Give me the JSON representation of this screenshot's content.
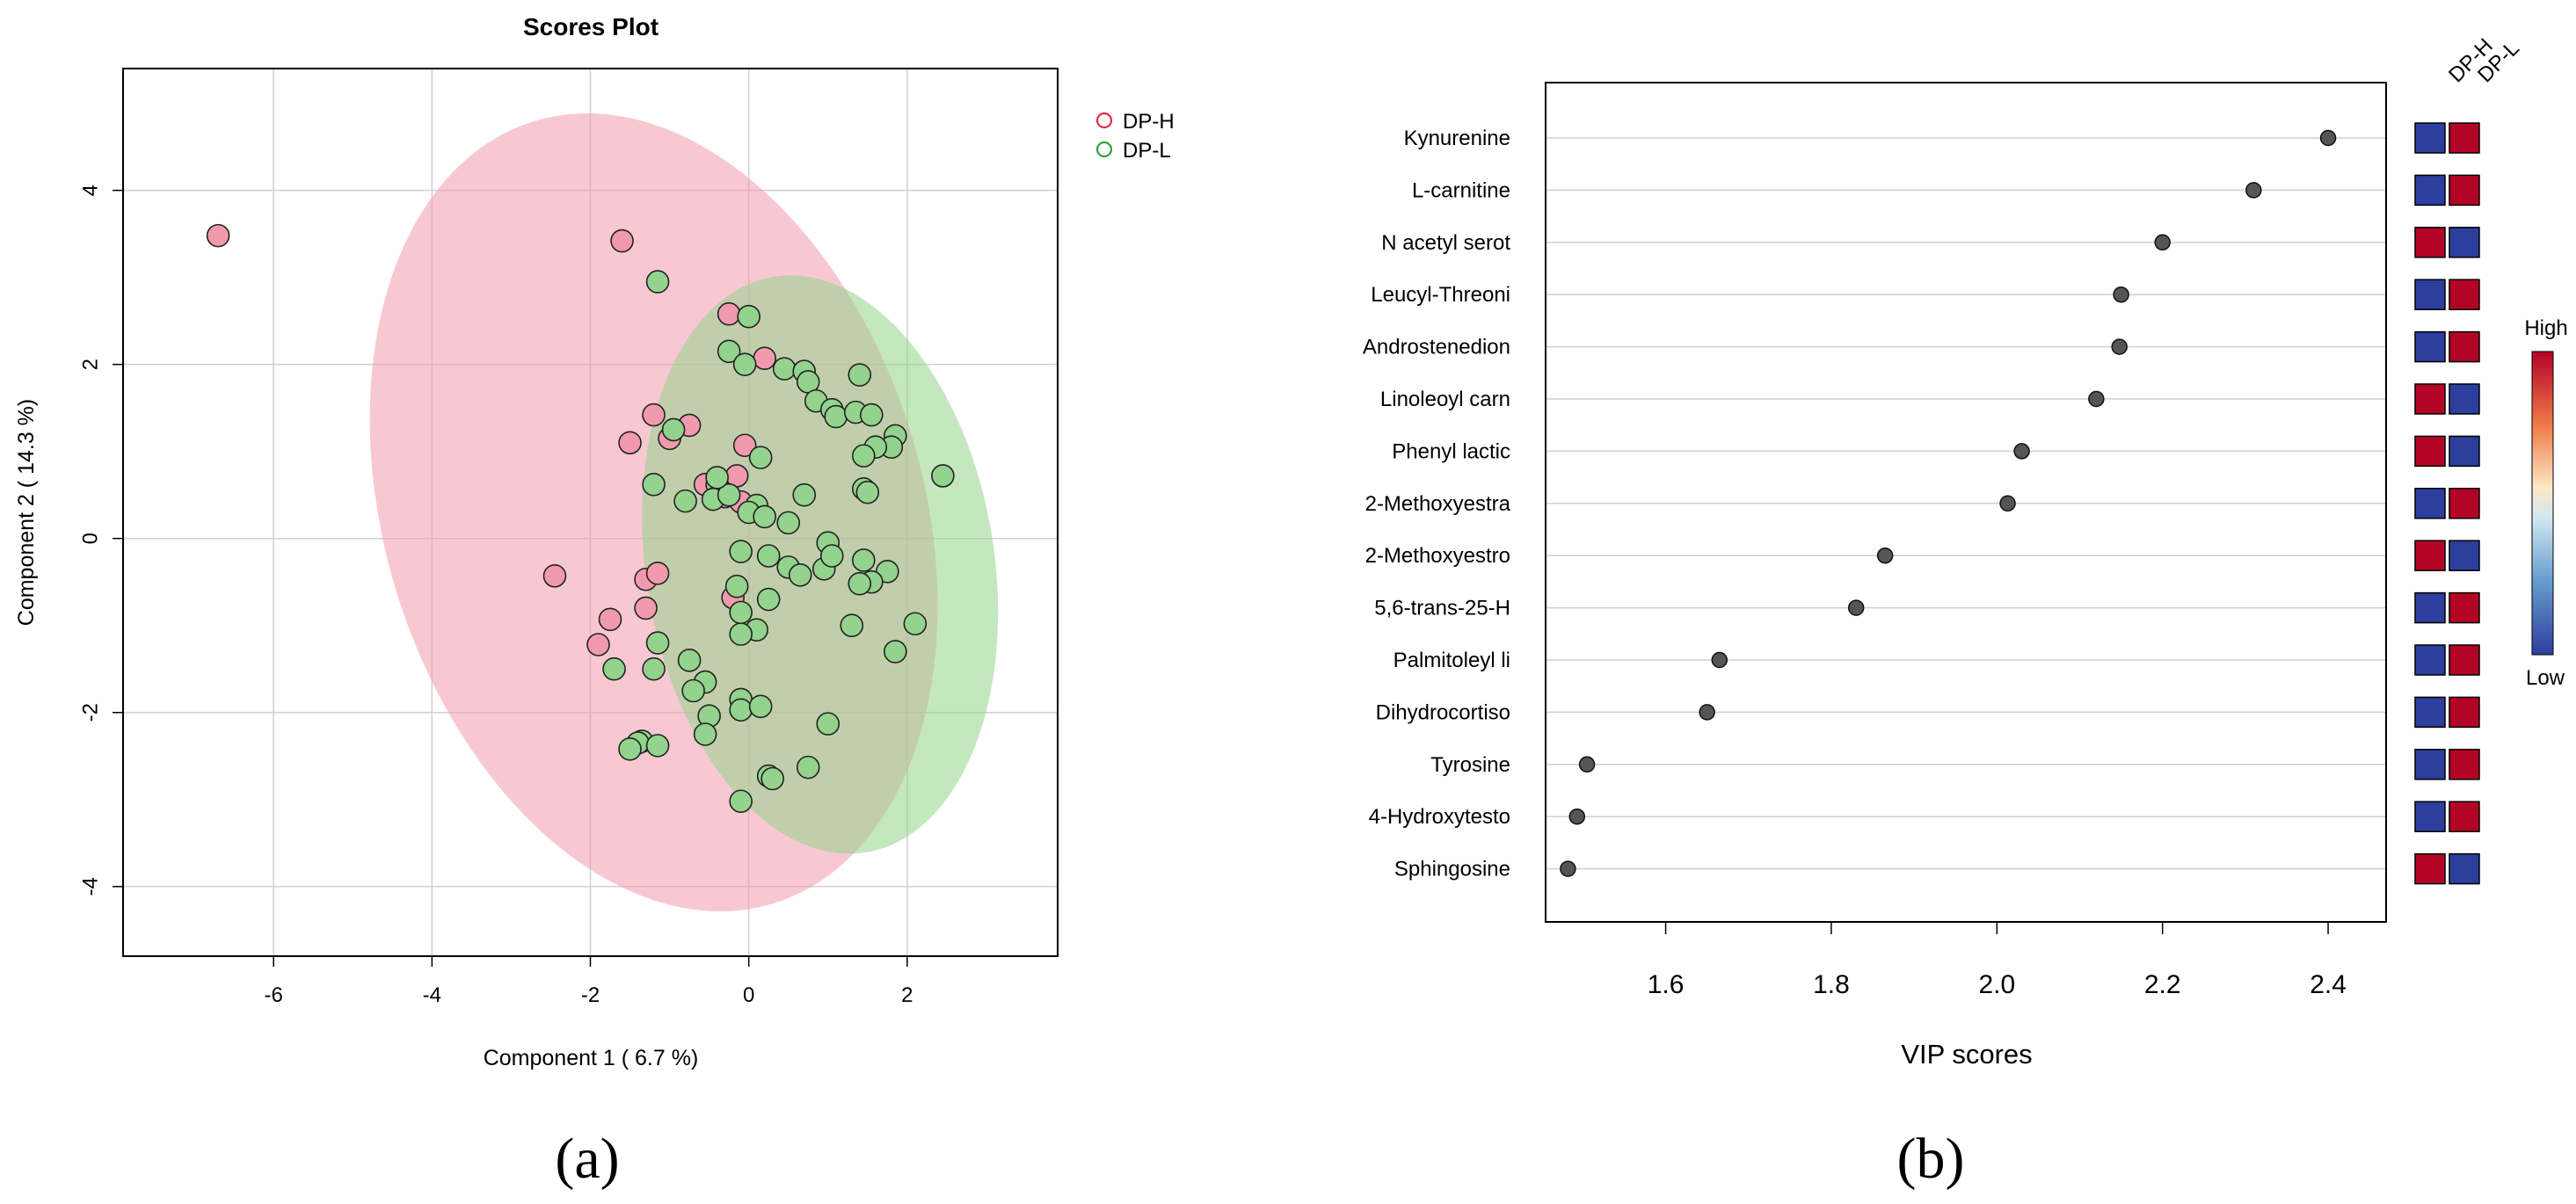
{
  "chart_data": [
    {
      "type": "scatter",
      "title": "Scores Plot",
      "xlabel": "Component 1 ( 6.7 %)",
      "ylabel": "Component 2 ( 14.3 %)",
      "xlim": [
        -7.9,
        3.9
      ],
      "ylim": [
        -4.8,
        5.4
      ],
      "xticks": [
        -6,
        -4,
        -2,
        0,
        2
      ],
      "yticks": [
        -4,
        -2,
        0,
        2,
        4
      ],
      "grid": true,
      "legend_position": "top-right",
      "series": [
        {
          "name": "DP-H",
          "color": "#e8274e",
          "fill": "#f29aad",
          "ellipse": {
            "cx": -1.2,
            "cy": 0.3,
            "rx": 3.4,
            "ry": 4.7,
            "angle": -17
          },
          "points": [
            [
              -6.7,
              3.48
            ],
            [
              -1.6,
              3.42
            ],
            [
              -0.25,
              2.58
            ],
            [
              0.2,
              2.07
            ],
            [
              -1.2,
              1.42
            ],
            [
              -1.5,
              1.1
            ],
            [
              -1.0,
              1.15
            ],
            [
              -0.75,
              1.3
            ],
            [
              -0.05,
              1.07
            ],
            [
              -0.55,
              0.62
            ],
            [
              -0.3,
              0.48
            ],
            [
              -0.15,
              0.72
            ],
            [
              -2.45,
              -0.43
            ],
            [
              -1.3,
              -0.47
            ],
            [
              -1.15,
              -0.4
            ],
            [
              -1.75,
              -0.93
            ],
            [
              -1.9,
              -1.22
            ],
            [
              -1.3,
              -0.8
            ],
            [
              -0.2,
              -0.68
            ],
            [
              -0.1,
              0.42
            ]
          ]
        },
        {
          "name": "DP-L",
          "color": "#2ea63a",
          "fill": "#93d38d",
          "ellipse": {
            "cx": 0.9,
            "cy": -0.3,
            "rx": 2.2,
            "ry": 3.35,
            "angle": -9
          },
          "points": [
            [
              -1.15,
              2.95
            ],
            [
              0.0,
              2.55
            ],
            [
              -0.25,
              2.15
            ],
            [
              -0.05,
              2.0
            ],
            [
              0.45,
              1.95
            ],
            [
              0.7,
              1.92
            ],
            [
              0.75,
              1.8
            ],
            [
              1.4,
              1.88
            ],
            [
              0.85,
              1.58
            ],
            [
              1.05,
              1.48
            ],
            [
              1.1,
              1.4
            ],
            [
              1.35,
              1.45
            ],
            [
              1.55,
              1.42
            ],
            [
              1.85,
              1.18
            ],
            [
              1.8,
              1.05
            ],
            [
              1.6,
              1.05
            ],
            [
              1.45,
              0.95
            ],
            [
              2.45,
              0.72
            ],
            [
              1.45,
              0.57
            ],
            [
              1.5,
              0.53
            ],
            [
              0.7,
              0.5
            ],
            [
              0.5,
              0.18
            ],
            [
              -0.95,
              1.25
            ],
            [
              -1.2,
              0.62
            ],
            [
              -0.4,
              0.62
            ],
            [
              -0.45,
              0.45
            ],
            [
              -0.25,
              0.5
            ],
            [
              0.1,
              0.38
            ],
            [
              0.0,
              0.3
            ],
            [
              0.2,
              0.25
            ],
            [
              -0.4,
              0.7
            ],
            [
              -0.8,
              0.43
            ],
            [
              0.15,
              0.93
            ],
            [
              -0.1,
              -0.15
            ],
            [
              0.25,
              -0.2
            ],
            [
              0.5,
              -0.33
            ],
            [
              0.65,
              -0.42
            ],
            [
              0.95,
              -0.35
            ],
            [
              1.0,
              -0.05
            ],
            [
              1.05,
              -0.2
            ],
            [
              1.45,
              -0.25
            ],
            [
              1.75,
              -0.38
            ],
            [
              1.55,
              -0.5
            ],
            [
              1.4,
              -0.52
            ],
            [
              2.1,
              -0.98
            ],
            [
              1.3,
              -1.0
            ],
            [
              1.85,
              -1.3
            ],
            [
              -0.15,
              -0.55
            ],
            [
              0.25,
              -0.7
            ],
            [
              0.1,
              -1.05
            ],
            [
              -0.1,
              -1.1
            ],
            [
              -0.75,
              -1.4
            ],
            [
              -1.15,
              -1.2
            ],
            [
              -1.2,
              -1.5
            ],
            [
              -1.7,
              -1.5
            ],
            [
              -0.55,
              -1.65
            ],
            [
              -0.7,
              -1.75
            ],
            [
              -0.1,
              -1.85
            ],
            [
              -0.1,
              -1.97
            ],
            [
              0.15,
              -1.93
            ],
            [
              1.0,
              -2.13
            ],
            [
              -0.5,
              -2.04
            ],
            [
              -0.55,
              -2.25
            ],
            [
              -1.35,
              -2.33
            ],
            [
              -1.4,
              -2.35
            ],
            [
              -1.5,
              -2.42
            ],
            [
              -1.15,
              -2.38
            ],
            [
              0.25,
              -2.73
            ],
            [
              0.3,
              -2.76
            ],
            [
              0.75,
              -2.63
            ],
            [
              -0.1,
              -3.02
            ],
            [
              -0.1,
              -0.85
            ]
          ]
        }
      ]
    },
    {
      "type": "dot",
      "xlabel": "VIP scores",
      "xlim": [
        1.455,
        2.47
      ],
      "xticks": [
        1.6,
        1.8,
        2.0,
        2.2,
        2.4
      ],
      "xtick_labels": [
        "1.6",
        "1.8",
        "2.0",
        "2.2",
        "2.4"
      ],
      "heatmap_columns": [
        "DP-H",
        "DP-L"
      ],
      "colorbar": {
        "high_label": "High",
        "low_label": "Low",
        "high_color": "#b40426",
        "low_color": "#2c3e9e"
      },
      "features": [
        {
          "name": "Kynurenine",
          "vip": 2.4,
          "heat": [
            "low",
            "high"
          ]
        },
        {
          "name": "L-carnitine",
          "vip": 2.31,
          "heat": [
            "low",
            "high"
          ]
        },
        {
          "name": "N acetyl serot",
          "vip": 2.2,
          "heat": [
            "high",
            "low"
          ]
        },
        {
          "name": "Leucyl-Threoni",
          "vip": 2.15,
          "heat": [
            "low",
            "high"
          ]
        },
        {
          "name": "Androstenedion",
          "vip": 2.148,
          "heat": [
            "low",
            "high"
          ]
        },
        {
          "name": "Linoleoyl carn",
          "vip": 2.12,
          "heat": [
            "high",
            "low"
          ]
        },
        {
          "name": "Phenyl lactic",
          "vip": 2.03,
          "heat": [
            "high",
            "low"
          ]
        },
        {
          "name": "2-Methoxyestra",
          "vip": 2.013,
          "heat": [
            "low",
            "high"
          ]
        },
        {
          "name": "2-Methoxyestro",
          "vip": 1.865,
          "heat": [
            "high",
            "low"
          ]
        },
        {
          "name": "5,6-trans-25-H",
          "vip": 1.83,
          "heat": [
            "low",
            "high"
          ]
        },
        {
          "name": "Palmitoleyl li",
          "vip": 1.665,
          "heat": [
            "low",
            "high"
          ]
        },
        {
          "name": "Dihydrocortiso",
          "vip": 1.65,
          "heat": [
            "low",
            "high"
          ]
        },
        {
          "name": "Tyrosine",
          "vip": 1.505,
          "heat": [
            "low",
            "high"
          ]
        },
        {
          "name": "4-Hydroxytesto",
          "vip": 1.493,
          "heat": [
            "low",
            "high"
          ]
        },
        {
          "name": "Sphingosine",
          "vip": 1.482,
          "heat": [
            "high",
            "low"
          ]
        }
      ]
    }
  ],
  "panel_labels": [
    "(a)",
    "(b)"
  ]
}
